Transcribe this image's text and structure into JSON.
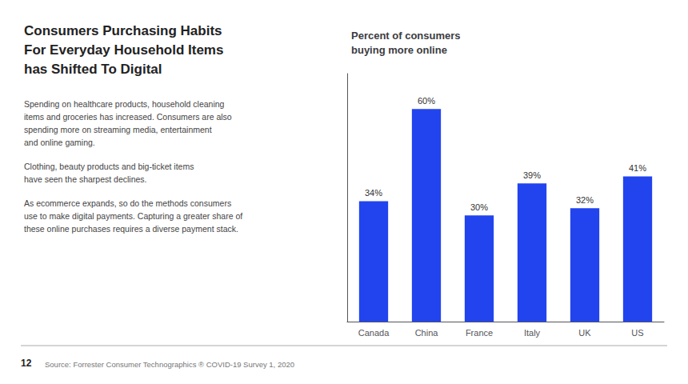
{
  "chart_data": {
    "type": "bar",
    "title": "Percent of consumers\nbuying more online",
    "categories": [
      "Canada",
      "China",
      "France",
      "Italy",
      "UK",
      "US"
    ],
    "values": [
      34,
      60,
      30,
      39,
      32,
      41
    ],
    "value_labels": [
      "34%",
      "60%",
      "30%",
      "39%",
      "32%",
      "41%"
    ],
    "data_labels": true,
    "color": "#2244ee",
    "ylim": [
      0,
      70
    ],
    "grid": false,
    "tick_labels": "x",
    "annotations": [
      "Consumers Purchasing Habits",
      "For Everyday Household Items",
      "has Shifted To Digital",
      "Spending on healthcare products, household cleaning\nitems and groceries has increased. Consumers are also\nspending more on streaming media, entertainment\nand online gaming.",
      "Clothing, beauty products and big-ticket items\nhave seen the sharpest declines.",
      "As ecommerce expands, so do the methods consumers\nuse to make digital payments. Capturing a greater share of\nthese online purchases requires a diverse payment stack.",
      "12",
      "Source: Forrester Consumer Technographics ® COVID-19 Survey 1, 2020"
    ]
  }
}
